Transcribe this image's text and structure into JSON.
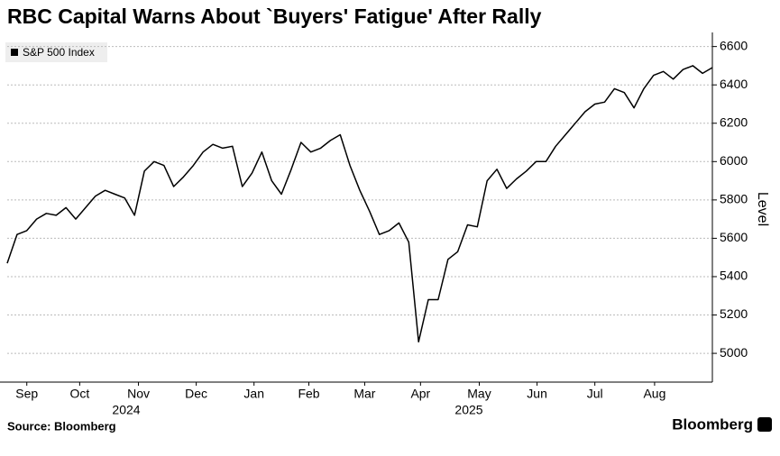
{
  "chart_data": {
    "type": "line",
    "title": "RBC Capital Warns About `Buyers' Fatigue' After Rally",
    "source": "Source: Bloomberg",
    "brand": "Bloomberg",
    "y_axis_label": "Level",
    "year_labels": [
      "2024",
      "2025"
    ],
    "series": [
      {
        "name": "S&P 500 Index",
        "color": "#000000",
        "values": [
          5470,
          5620,
          5640,
          5700,
          5730,
          5720,
          5760,
          5700,
          5760,
          5820,
          5850,
          5830,
          5810,
          5720,
          5950,
          6000,
          5980,
          5870,
          5920,
          5980,
          6050,
          6090,
          6070,
          6080,
          5870,
          5940,
          6050,
          5900,
          5830,
          5960,
          6100,
          6050,
          6070,
          6110,
          6140,
          5980,
          5850,
          5740,
          5620,
          5640,
          5680,
          5580,
          5060,
          5280,
          5280,
          5490,
          5530,
          5670,
          5660,
          5900,
          5960,
          5860,
          5910,
          5950,
          6000,
          6000,
          6080,
          6140,
          6200,
          6260,
          6300,
          6310,
          6380,
          6360,
          6280,
          6380,
          6450,
          6470,
          6430,
          6480,
          6500,
          6460,
          6490
        ]
      }
    ],
    "xlim": [
      0,
      72
    ],
    "xticks": [
      {
        "value": 2,
        "label": "Sep"
      },
      {
        "value": 7.4,
        "label": "Oct"
      },
      {
        "value": 13.4,
        "label": "Nov"
      },
      {
        "value": 19.3,
        "label": "Dec"
      },
      {
        "value": 25.2,
        "label": "Jan"
      },
      {
        "value": 30.8,
        "label": "Feb"
      },
      {
        "value": 36.5,
        "label": "Mar"
      },
      {
        "value": 42.2,
        "label": "Apr"
      },
      {
        "value": 48.2,
        "label": "May"
      },
      {
        "value": 54.1,
        "label": "Jun"
      },
      {
        "value": 60,
        "label": "Jul"
      },
      {
        "value": 66.1,
        "label": "Aug"
      }
    ],
    "ylim": [
      4850,
      6650
    ],
    "yticks": [
      5000,
      5200,
      5400,
      5600,
      5800,
      6000,
      6200,
      6400,
      6600
    ],
    "grid": true
  }
}
